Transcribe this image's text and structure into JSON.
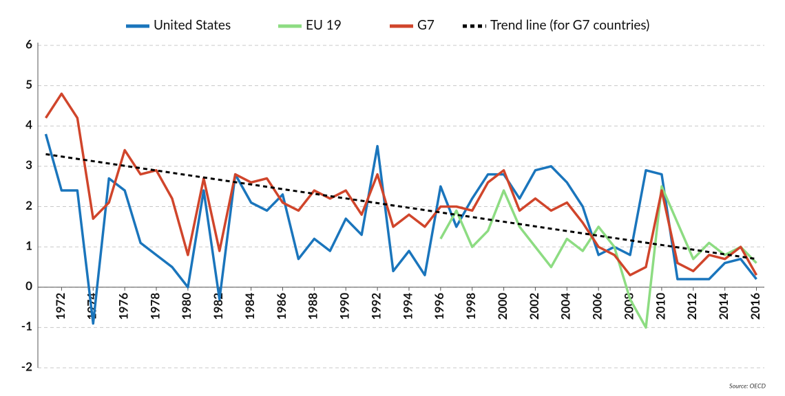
{
  "chart_data": {
    "type": "line",
    "source": "Source: OECD",
    "x": [
      1971,
      1972,
      1973,
      1974,
      1975,
      1976,
      1977,
      1978,
      1979,
      1980,
      1981,
      1982,
      1983,
      1984,
      1985,
      1986,
      1987,
      1988,
      1989,
      1990,
      1991,
      1992,
      1993,
      1994,
      1995,
      1996,
      1997,
      1998,
      1999,
      2000,
      2001,
      2002,
      2003,
      2004,
      2005,
      2006,
      2007,
      2008,
      2009,
      2010,
      2011,
      2012,
      2013,
      2014,
      2015,
      2016
    ],
    "series": [
      {
        "name": "United States",
        "color": "#1a75bc",
        "values": [
          3.8,
          2.4,
          2.4,
          -0.9,
          2.7,
          2.4,
          1.1,
          0.8,
          0.5,
          0.0,
          2.4,
          -0.3,
          2.8,
          2.1,
          1.9,
          2.3,
          0.7,
          1.2,
          0.9,
          1.7,
          1.3,
          3.5,
          0.4,
          0.9,
          0.3,
          2.5,
          1.5,
          2.2,
          2.8,
          2.8,
          2.2,
          2.9,
          3.0,
          2.6,
          2.0,
          0.8,
          1.0,
          0.8,
          2.9,
          2.8,
          0.2,
          0.2,
          0.2,
          0.6,
          0.7,
          0.2
        ]
      },
      {
        "name": "EU 19",
        "color": "#8ddc82",
        "values": [
          null,
          null,
          null,
          null,
          null,
          null,
          null,
          null,
          null,
          null,
          null,
          null,
          null,
          null,
          null,
          null,
          null,
          null,
          null,
          null,
          null,
          null,
          null,
          null,
          null,
          1.2,
          1.9,
          1.0,
          1.4,
          2.4,
          1.5,
          1.0,
          0.5,
          1.2,
          0.9,
          1.5,
          1.0,
          -0.3,
          -1.0,
          2.5,
          1.6,
          0.7,
          1.1,
          0.8,
          1.0,
          0.6
        ]
      },
      {
        "name": "G7",
        "color": "#d0452b",
        "values": [
          4.2,
          4.8,
          4.2,
          1.7,
          2.1,
          3.4,
          2.8,
          2.9,
          2.2,
          0.8,
          2.7,
          0.9,
          2.8,
          2.6,
          2.7,
          2.1,
          1.9,
          2.4,
          2.2,
          2.4,
          1.8,
          2.8,
          1.5,
          1.8,
          1.5,
          2.0,
          2.0,
          1.9,
          2.6,
          2.9,
          1.9,
          2.2,
          1.9,
          2.1,
          1.6,
          1.0,
          0.8,
          0.3,
          0.5,
          2.4,
          0.6,
          0.4,
          0.8,
          0.7,
          1.0,
          0.3
        ]
      },
      {
        "name": "Trend line (for G7 countries)",
        "color": "#000000",
        "dashed": true,
        "x": [
          1971,
          2016
        ],
        "values": [
          3.3,
          0.7
        ]
      }
    ],
    "xlim": [
      1970.5,
      2016.5
    ],
    "xticks": [
      1972,
      1974,
      1976,
      1978,
      1980,
      1982,
      1984,
      1986,
      1988,
      1990,
      1992,
      1994,
      1996,
      1998,
      2000,
      2002,
      2004,
      2006,
      2008,
      2010,
      2012,
      2014,
      2016
    ],
    "ylim": [
      -2,
      6
    ],
    "yticks": [
      -2,
      -1,
      0,
      1,
      2,
      3,
      4,
      5,
      6
    ],
    "grid": true
  }
}
